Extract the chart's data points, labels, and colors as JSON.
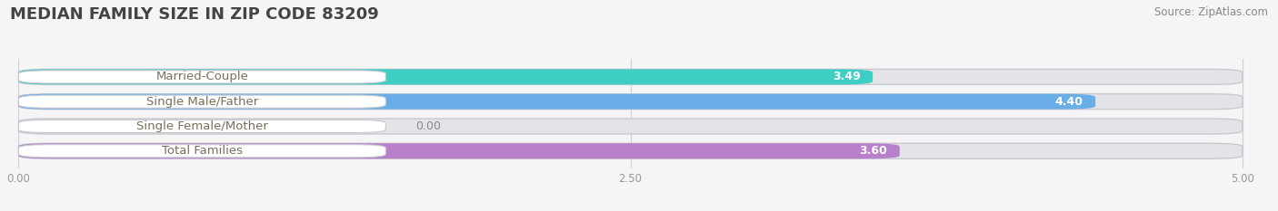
{
  "title": "MEDIAN FAMILY SIZE IN ZIP CODE 83209",
  "source": "Source: ZipAtlas.com",
  "categories": [
    "Married-Couple",
    "Single Male/Father",
    "Single Female/Mother",
    "Total Families"
  ],
  "values": [
    3.49,
    4.4,
    0.0,
    3.6
  ],
  "bar_colors": [
    "#3ecec3",
    "#6aaee8",
    "#f7a8c4",
    "#b87fcb"
  ],
  "xlim_max": 5.0,
  "xticks": [
    0.0,
    2.5,
    5.0
  ],
  "xtick_labels": [
    "0.00",
    "2.50",
    "5.00"
  ],
  "title_fontsize": 13,
  "source_fontsize": 8.5,
  "label_fontsize": 9.5,
  "value_fontsize": 9,
  "bar_height": 0.62,
  "bg_bar_color": "#e4e4e8",
  "label_bg_color": "#ffffff",
  "fig_bg_color": "#f5f5f5",
  "label_text_color": "#7a6e5a",
  "value_text_color_in": "#ffffff",
  "value_text_color_out": "#888888",
  "grid_color": "#d0d0d8",
  "title_color": "#444444",
  "source_color": "#888888"
}
